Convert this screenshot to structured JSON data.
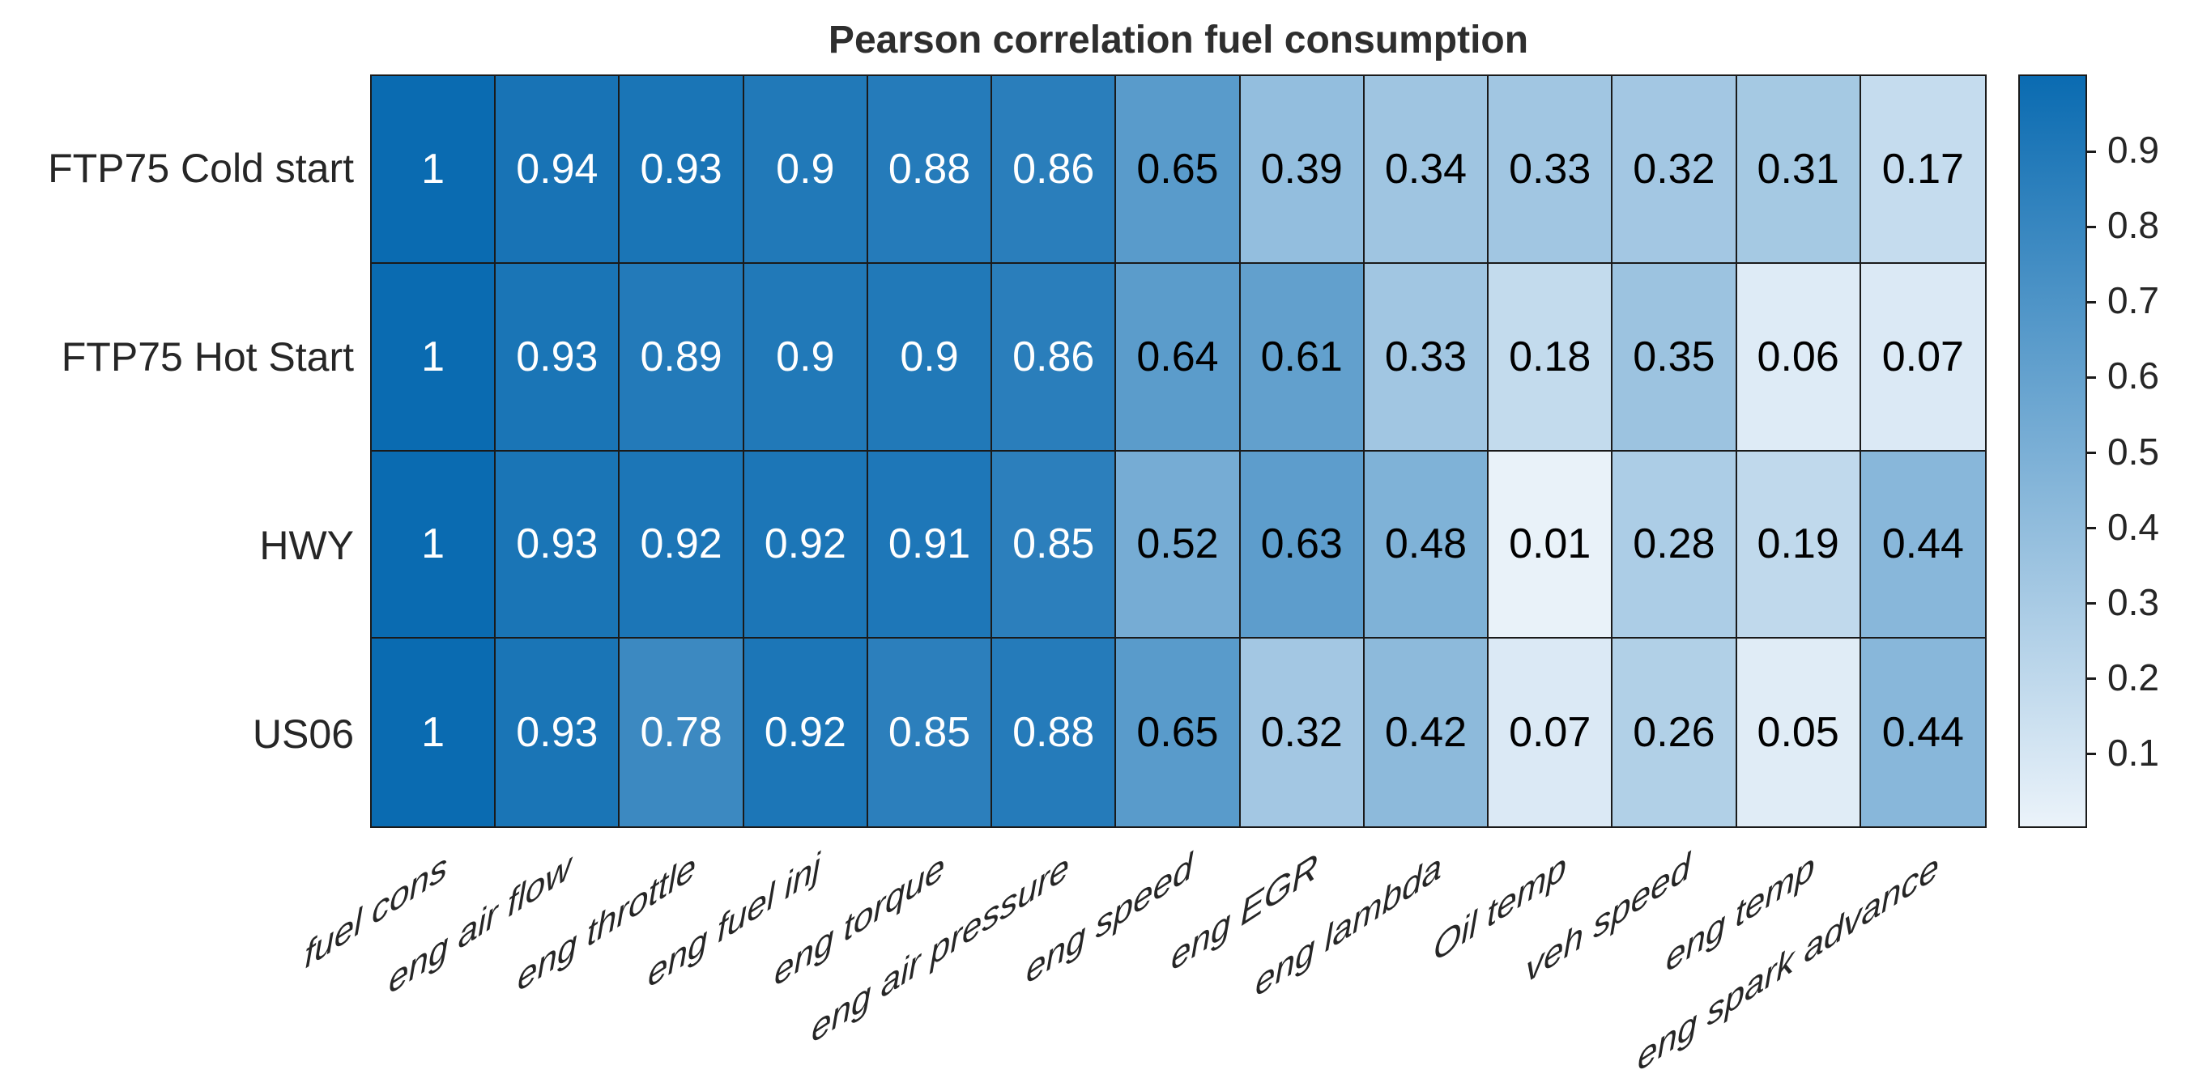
{
  "chart_data": {
    "type": "heatmap",
    "title": "Pearson correlation fuel consumption",
    "rows": [
      "FTP75 Cold start",
      "FTP75 Hot Start",
      "HWY",
      "US06"
    ],
    "columns": [
      "fuel cons",
      "eng air flow",
      "eng throttle",
      "eng fuel inj",
      "eng torque",
      "eng air pressure",
      "eng speed",
      "eng EGR",
      "eng lambda",
      "Oil temp",
      "veh speed",
      "eng temp",
      "eng spark advance"
    ],
    "values": [
      [
        1,
        0.94,
        0.93,
        0.9,
        0.88,
        0.86,
        0.65,
        0.39,
        0.34,
        0.33,
        0.32,
        0.31,
        0.17
      ],
      [
        1,
        0.93,
        0.89,
        0.9,
        0.9,
        0.86,
        0.64,
        0.61,
        0.33,
        0.18,
        0.35,
        0.06,
        0.07
      ],
      [
        1,
        0.93,
        0.92,
        0.92,
        0.91,
        0.85,
        0.52,
        0.63,
        0.48,
        0.01,
        0.28,
        0.19,
        0.44
      ],
      [
        1,
        0.93,
        0.78,
        0.92,
        0.85,
        0.88,
        0.65,
        0.32,
        0.42,
        0.07,
        0.26,
        0.05,
        0.44
      ]
    ],
    "colorbar_ticks": [
      0.9,
      0.8,
      0.7,
      0.6,
      0.5,
      0.4,
      0.3,
      0.2,
      0.1
    ],
    "color_scale": {
      "min": 0,
      "max": 1,
      "low_color": "#EBF3FA",
      "high_color": "#0A6BB1"
    },
    "cell_text_colors": {
      "light": "#FFFFFF",
      "dark": "#000000",
      "white_text_threshold": 0.7
    },
    "grid_line_color": "#1a1a1a",
    "legend_position": "right-colorbar",
    "grid": true
  }
}
